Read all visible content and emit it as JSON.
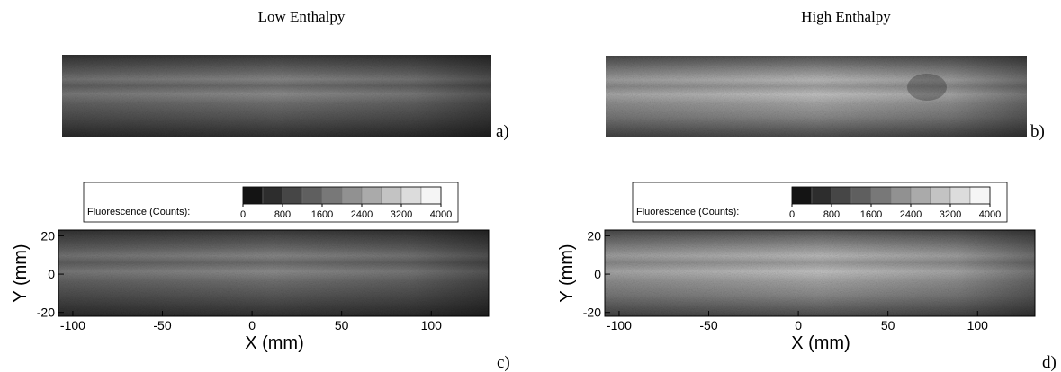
{
  "columns": [
    {
      "title": "Low Enthalpy"
    },
    {
      "title": "High Enthalpy"
    }
  ],
  "panels": [
    {
      "label": "a)"
    },
    {
      "label": "b)"
    },
    {
      "label": "c)",
      "xlabel": "X (mm)",
      "ylabel": "Y (mm)",
      "xlim": [
        -108,
        132
      ],
      "ylim": [
        -22,
        23
      ],
      "xticks": [
        -100,
        -50,
        0,
        50,
        100
      ],
      "yticks": [
        -20,
        0,
        20
      ],
      "colorbar": {
        "label": "Fluorescence (Counts):",
        "clim": [
          0,
          4000
        ],
        "ticks": [
          0,
          800,
          1600,
          2400,
          3200,
          4000
        ]
      }
    },
    {
      "label": "d)",
      "xlabel": "X (mm)",
      "ylabel": "Y (mm)",
      "xlim": [
        -108,
        132
      ],
      "ylim": [
        -22,
        23
      ],
      "xticks": [
        -100,
        -50,
        0,
        50,
        100
      ],
      "yticks": [
        -20,
        0,
        20
      ],
      "colorbar": {
        "label": "Fluorescence (Counts):",
        "clim": [
          0,
          4000
        ],
        "ticks": [
          0,
          800,
          1600,
          2400,
          3200,
          4000
        ]
      }
    }
  ]
}
